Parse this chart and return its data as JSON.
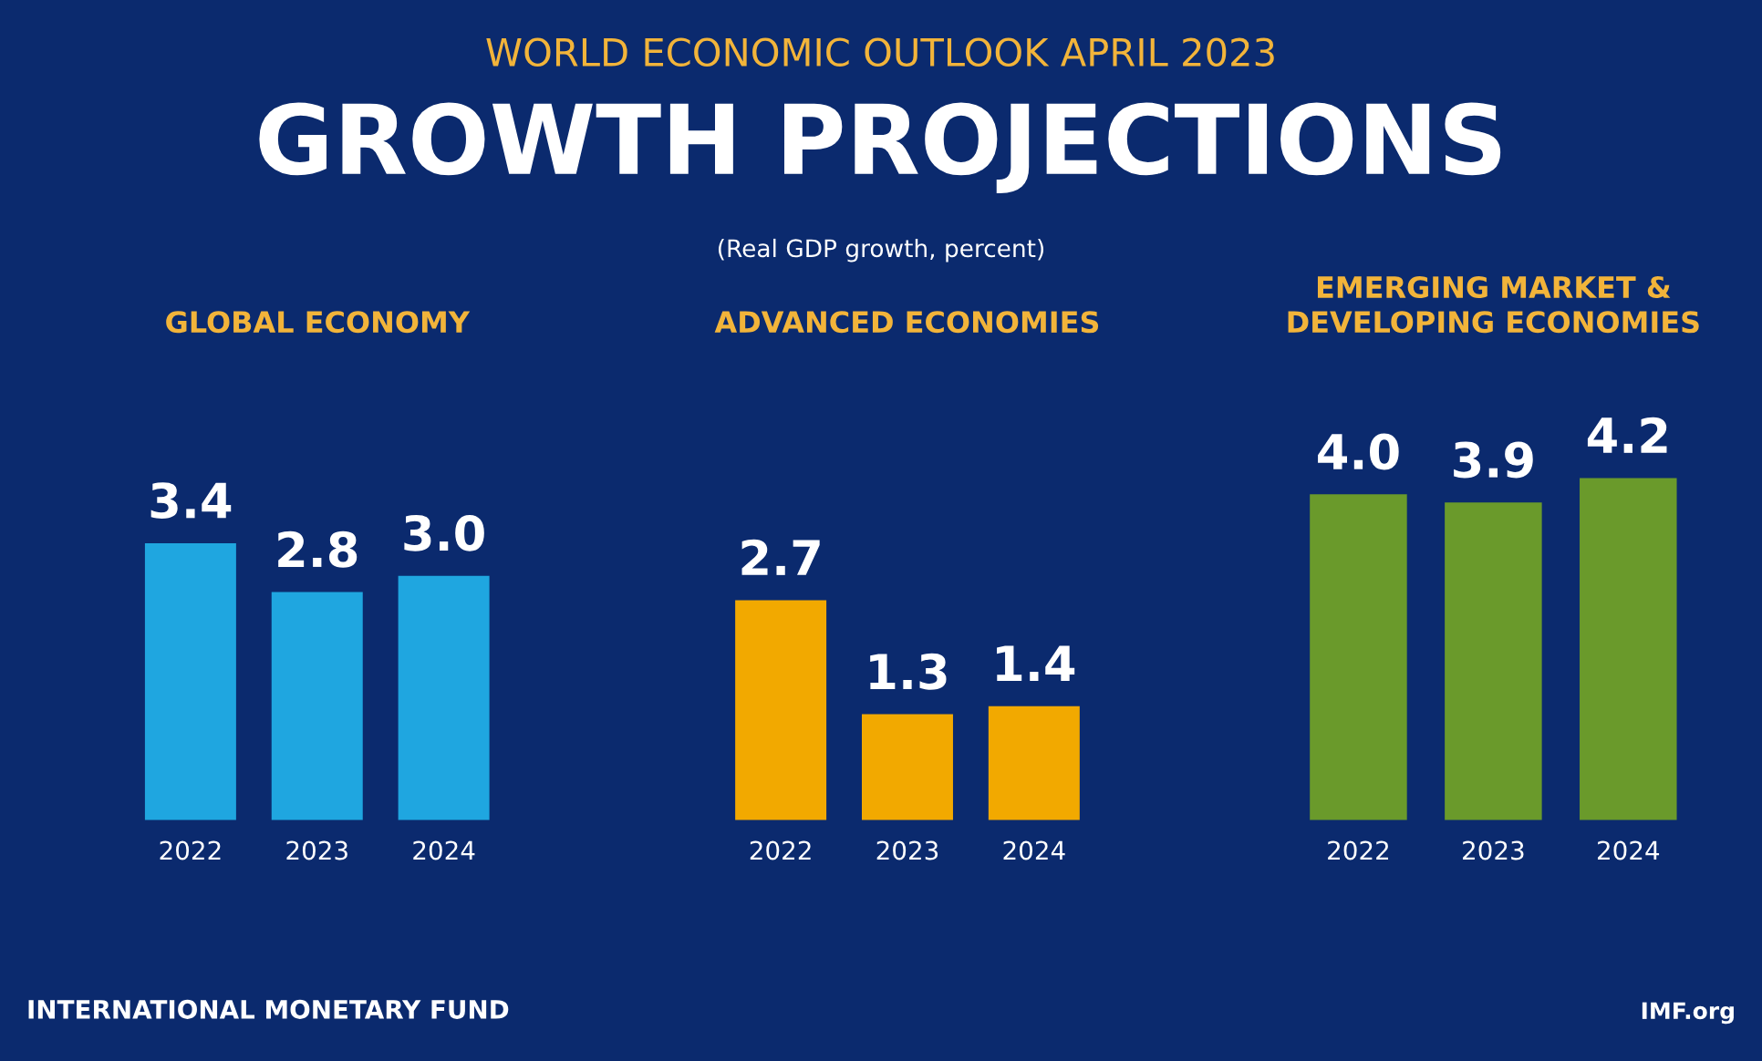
{
  "chart_data": [
    {
      "type": "bar",
      "title": "GLOBAL ECONOMY",
      "categories": [
        "2022",
        "2023",
        "2024"
      ],
      "values": [
        3.4,
        2.8,
        3.0
      ],
      "value_labels": [
        "3.4",
        "2.8",
        "3.0"
      ],
      "color": "#1fa6e0",
      "tick_labels": "x",
      "annotations": [
        "WORLD ECONOMIC OUTLOOK APRIL 2023",
        "GROWTH PROJECTIONS",
        "(Real GDP growth, percent)",
        "INTERNATIONAL MONETARY FUND",
        "IMF.org"
      ]
    },
    {
      "type": "bar",
      "title": "ADVANCED ECONOMIES",
      "categories": [
        "2022",
        "2023",
        "2024"
      ],
      "values": [
        2.7,
        1.3,
        1.4
      ],
      "value_labels": [
        "2.7",
        "1.3",
        "1.4"
      ],
      "color": "#f2a900",
      "tick_labels": "x"
    },
    {
      "type": "bar",
      "title": "EMERGING MARKET &\nDEVELOPING ECONOMIES",
      "categories": [
        "2022",
        "2023",
        "2024"
      ],
      "values": [
        4.0,
        3.9,
        4.2
      ],
      "value_labels": [
        "4.0",
        "3.9",
        "4.2"
      ],
      "color": "#6a9a2b",
      "tick_labels": "x"
    }
  ]
}
